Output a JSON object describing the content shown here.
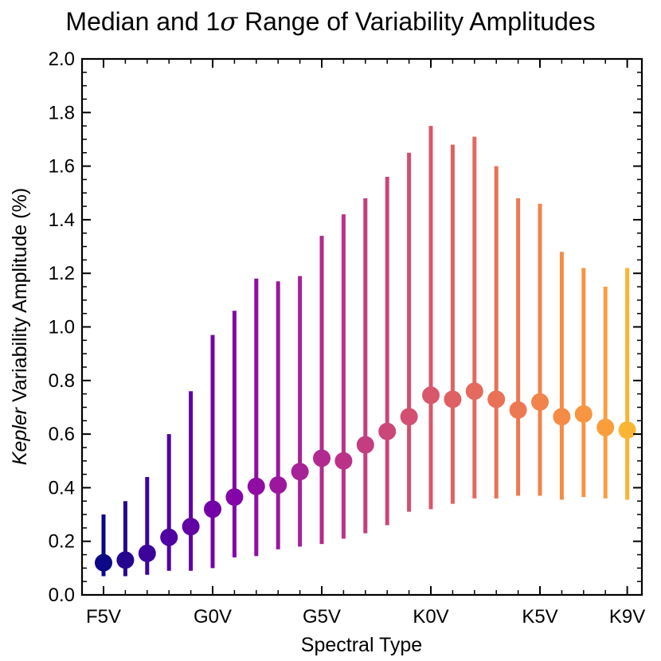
{
  "chart_data": {
    "type": "scatter",
    "title_prefix": "Median and 1",
    "title_symbol": "σ",
    "title_suffix": " Range of Variability Amplitudes",
    "xlabel": "Spectral Type",
    "ylabel_italic": "Kepler",
    "ylabel_rest": " Variability Amplitude (%)",
    "ylim": [
      0.0,
      2.0
    ],
    "yticks": [
      "0.0",
      "0.2",
      "0.4",
      "0.6",
      "0.8",
      "1.0",
      "1.2",
      "1.4",
      "1.6",
      "1.8",
      "2.0"
    ],
    "xtick_labels": [
      {
        "index": 0,
        "label": "F5V"
      },
      {
        "index": 5,
        "label": "G0V"
      },
      {
        "index": 10,
        "label": "G5V"
      },
      {
        "index": 15,
        "label": "K0V"
      },
      {
        "index": 20,
        "label": "K5V"
      },
      {
        "index": 24,
        "label": "K9V"
      }
    ],
    "series": [
      {
        "name": "median with 1-sigma range",
        "points": [
          {
            "median": 0.12,
            "low": 0.07,
            "high": 0.3
          },
          {
            "median": 0.13,
            "low": 0.07,
            "high": 0.35
          },
          {
            "median": 0.155,
            "low": 0.075,
            "high": 0.44
          },
          {
            "median": 0.215,
            "low": 0.09,
            "high": 0.6
          },
          {
            "median": 0.255,
            "low": 0.09,
            "high": 0.76
          },
          {
            "median": 0.32,
            "low": 0.1,
            "high": 0.97
          },
          {
            "median": 0.365,
            "low": 0.14,
            "high": 1.06
          },
          {
            "median": 0.405,
            "low": 0.145,
            "high": 1.18
          },
          {
            "median": 0.41,
            "low": 0.17,
            "high": 1.17
          },
          {
            "median": 0.46,
            "low": 0.18,
            "high": 1.19
          },
          {
            "median": 0.51,
            "low": 0.19,
            "high": 1.34
          },
          {
            "median": 0.5,
            "low": 0.21,
            "high": 1.42
          },
          {
            "median": 0.56,
            "low": 0.23,
            "high": 1.48
          },
          {
            "median": 0.61,
            "low": 0.26,
            "high": 1.56
          },
          {
            "median": 0.665,
            "low": 0.31,
            "high": 1.65
          },
          {
            "median": 0.745,
            "low": 0.32,
            "high": 1.75
          },
          {
            "median": 0.73,
            "low": 0.34,
            "high": 1.68
          },
          {
            "median": 0.76,
            "low": 0.36,
            "high": 1.71
          },
          {
            "median": 0.73,
            "low": 0.36,
            "high": 1.6
          },
          {
            "median": 0.69,
            "low": 0.37,
            "high": 1.48
          },
          {
            "median": 0.72,
            "low": 0.37,
            "high": 1.46
          },
          {
            "median": 0.665,
            "low": 0.355,
            "high": 1.28
          },
          {
            "median": 0.675,
            "low": 0.365,
            "high": 1.22
          },
          {
            "median": 0.625,
            "low": 0.36,
            "high": 1.15
          },
          {
            "median": 0.615,
            "low": 0.355,
            "high": 1.22
          }
        ]
      }
    ],
    "colors": [
      "#0d0887",
      "#26068f",
      "#3c049b",
      "#5002a2",
      "#6200a4",
      "#7301a8",
      "#8305a7",
      "#900da4",
      "#9c179e",
      "#a72197",
      "#b12a90",
      "#ba3388",
      "#c33d80",
      "#cb4679",
      "#d24f71",
      "#d8576b",
      "#de6164",
      "#e4695e",
      "#e97158",
      "#ed7953",
      "#f1834c",
      "#f48c46",
      "#f79540",
      "#fa9e3b",
      "#fbb535"
    ],
    "grid": false
  }
}
